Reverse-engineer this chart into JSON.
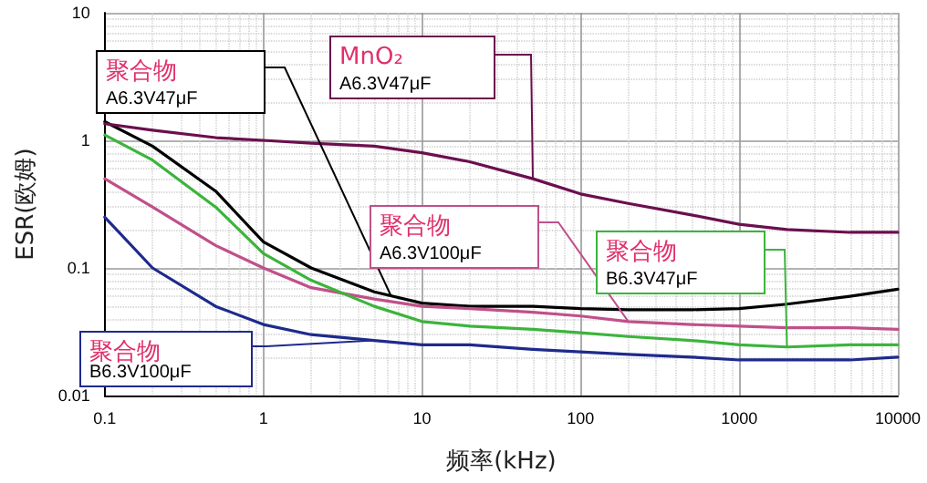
{
  "chart_data": {
    "type": "line",
    "xlabel": "频率(kHz)",
    "ylabel": "ESR(欧姆)",
    "x": [
      0.1,
      0.2,
      0.5,
      1,
      2,
      5,
      10,
      20,
      50,
      100,
      200,
      500,
      1000,
      2000,
      5000,
      10000
    ],
    "series": [
      {
        "name": "聚合物\nA6.3V47μF",
        "color": "#000000",
        "values": [
          1.4,
          0.9,
          0.4,
          0.16,
          0.1,
          0.065,
          0.053,
          0.05,
          0.05,
          0.048,
          0.047,
          0.047,
          0.048,
          0.052,
          0.06,
          0.068
        ]
      },
      {
        "name": "MnO₂\nA6.3V47μF",
        "color": "#6b0f4e",
        "values": [
          1.35,
          1.2,
          1.05,
          1.0,
          0.95,
          0.9,
          0.8,
          0.68,
          0.5,
          0.38,
          0.32,
          0.26,
          0.22,
          0.2,
          0.19,
          0.19
        ]
      },
      {
        "name": "聚合物\nA6.3V100μF",
        "color": "#c0508a",
        "values": [
          0.5,
          0.3,
          0.15,
          0.1,
          0.07,
          0.057,
          0.05,
          0.048,
          0.045,
          0.042,
          0.038,
          0.036,
          0.035,
          0.034,
          0.034,
          0.033
        ]
      },
      {
        "name": "聚合物\nB6.3V47μF",
        "color": "#3cb43c",
        "values": [
          1.1,
          0.7,
          0.3,
          0.13,
          0.08,
          0.05,
          0.038,
          0.035,
          0.033,
          0.031,
          0.029,
          0.027,
          0.025,
          0.024,
          0.025,
          0.025
        ]
      },
      {
        "name": "聚合物\nB6.3V100μF",
        "color": "#1e2a8c",
        "values": [
          0.25,
          0.1,
          0.05,
          0.036,
          0.03,
          0.027,
          0.025,
          0.025,
          0.023,
          0.022,
          0.021,
          0.02,
          0.019,
          0.019,
          0.019,
          0.02
        ]
      }
    ],
    "xlim": [
      0.1,
      10000
    ],
    "ylim": [
      0.01,
      10
    ],
    "xticks": [
      0.1,
      1,
      10,
      100,
      1000,
      10000
    ],
    "yticks": [
      0.01,
      0.1,
      1,
      10
    ],
    "log": "xy",
    "grid": true,
    "legend": false,
    "marker": "none",
    "line_style": "solid"
  }
}
